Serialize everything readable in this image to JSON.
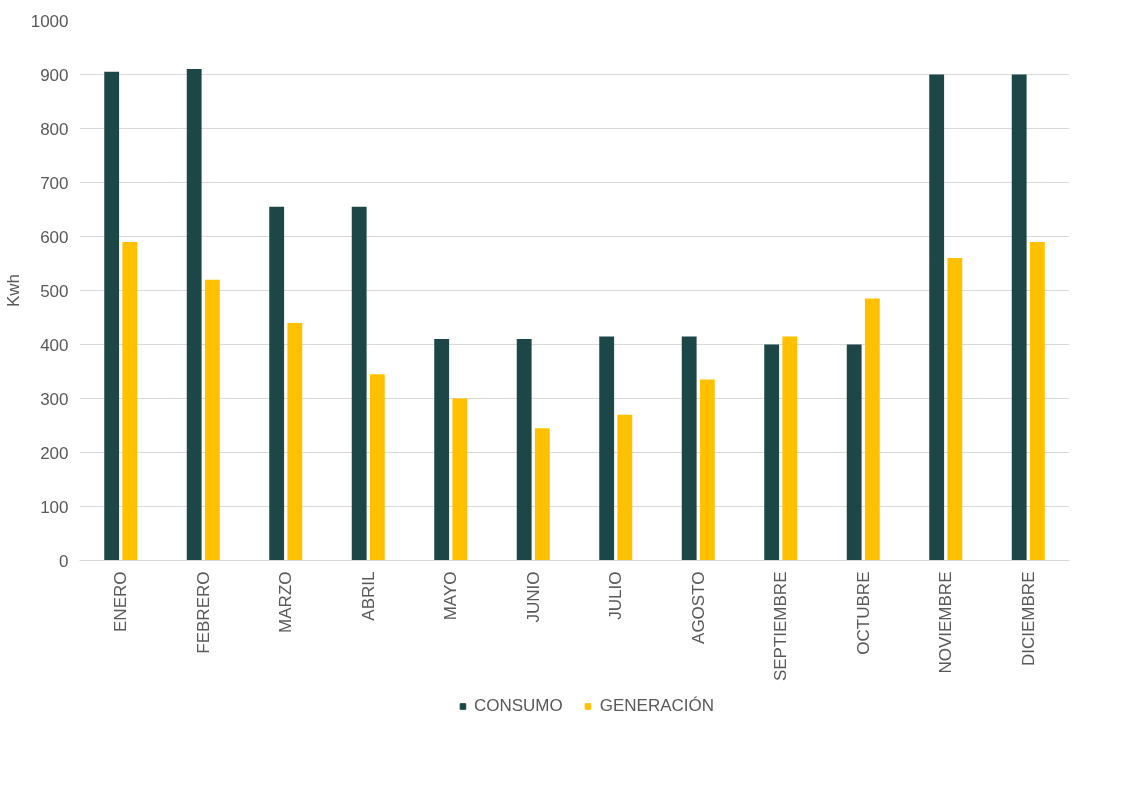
{
  "chart_data": {
    "type": "bar",
    "ylabel": "Kwh",
    "categories": [
      "ENERO",
      "FEBRERO",
      "MARZO",
      "ABRIL",
      "MAYO",
      "JUNIO",
      "JULIO",
      "AGOSTO",
      "SEPTIEMBRE",
      "OCTUBRE",
      "NOVIEMBRE",
      "DICIEMBRE"
    ],
    "series": [
      {
        "name": "CONSUMO",
        "color": "#1c4746",
        "values": [
          905,
          910,
          655,
          655,
          410,
          410,
          415,
          415,
          400,
          400,
          900,
          900
        ]
      },
      {
        "name": "GENERACIÓN",
        "color": "#ffc000",
        "values": [
          590,
          520,
          440,
          345,
          300,
          245,
          270,
          335,
          415,
          485,
          560,
          590
        ]
      }
    ],
    "ylim": [
      0,
      1000
    ],
    "yticks": [
      0,
      100,
      200,
      300,
      400,
      500,
      600,
      700,
      800,
      900,
      1000
    ],
    "grid": "y",
    "legend": "bottom"
  }
}
